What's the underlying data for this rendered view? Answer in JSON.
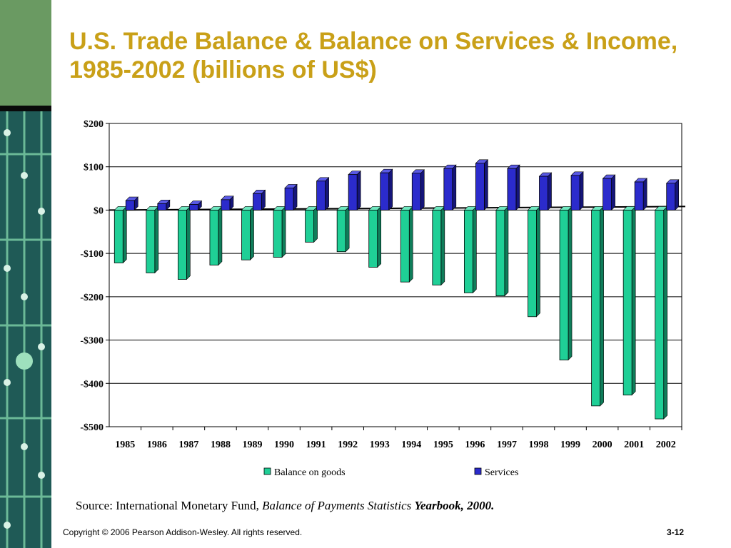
{
  "slide": {
    "title": "U.S. Trade Balance & Balance on Services & Income, 1985-2002 (billions of US$)",
    "source_prefix": "Source: International Monetary Fund, ",
    "source_italic": "Balance of Payments Statistics ",
    "source_bold_italic": "Yearbook, 2000",
    "source_suffix": ".",
    "copyright": "Copyright © 2006 Pearson Addison-Wesley. All rights reserved.",
    "page_number": "3-12"
  },
  "chart_data": {
    "type": "bar",
    "categories": [
      "1985",
      "1986",
      "1987",
      "1988",
      "1989",
      "1990",
      "1991",
      "1992",
      "1993",
      "1994",
      "1995",
      "1996",
      "1997",
      "1998",
      "1999",
      "2000",
      "2001",
      "2002"
    ],
    "series": [
      {
        "name": "Balance on goods",
        "color": "#1fcf96",
        "values": [
          -122,
          -145,
          -160,
          -127,
          -115,
          -109,
          -74,
          -96,
          -132,
          -166,
          -173,
          -191,
          -198,
          -246,
          -346,
          -452,
          -427,
          -482
        ]
      },
      {
        "name": "Services",
        "color": "#2b2bcc",
        "values": [
          22,
          15,
          13,
          24,
          38,
          51,
          67,
          82,
          86,
          85,
          96,
          108,
          96,
          78,
          80,
          73,
          65,
          62
        ]
      }
    ],
    "y_tick_labels": [
      "$200",
      "$100",
      "$0",
      "-$100",
      "-$200",
      "-$300",
      "-$400",
      "-$500"
    ],
    "y_ticks": [
      200,
      100,
      0,
      -100,
      -200,
      -300,
      -400,
      -500
    ],
    "ylim": [
      -500,
      200
    ],
    "grid": true,
    "legend_position": "bottom"
  },
  "colors": {
    "title": "#c9a018",
    "sidebar_green": "#6a9a62",
    "circuit_board": "#1f5a56"
  }
}
